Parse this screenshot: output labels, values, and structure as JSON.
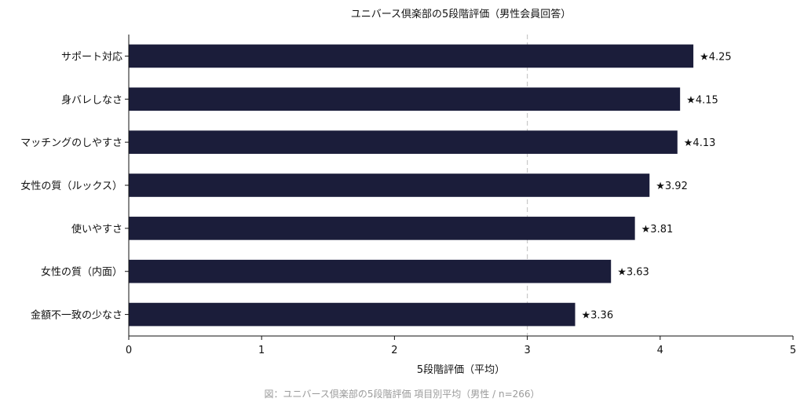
{
  "chart_data": {
    "type": "bar",
    "orientation": "horizontal",
    "title": "ユニバース倶楽部の5段階評価（男性会員回答）",
    "xlabel": "5段階評価（平均）",
    "ylabel": "",
    "xlim": [
      0,
      5
    ],
    "xticks": [
      "0",
      "1",
      "2",
      "3",
      "4",
      "5"
    ],
    "reference_line": 3,
    "categories": [
      "サポート対応",
      "身バレしなさ",
      "マッチングのしやすさ",
      "女性の質（ルックス）",
      "使いやすさ",
      "女性の質（内面）",
      "金額不一致の少なさ"
    ],
    "values": [
      4.25,
      4.15,
      4.13,
      3.92,
      3.81,
      3.63,
      3.36
    ],
    "data_labels": [
      "★4.25",
      "★4.15",
      "★4.13",
      "★3.92",
      "★3.81",
      "★3.63",
      "★3.36"
    ],
    "bar_color": "#1b1d3a",
    "grid": false
  },
  "caption": "図：ユニバース倶楽部の5段階評価 項目別平均（男性 / n=266）"
}
